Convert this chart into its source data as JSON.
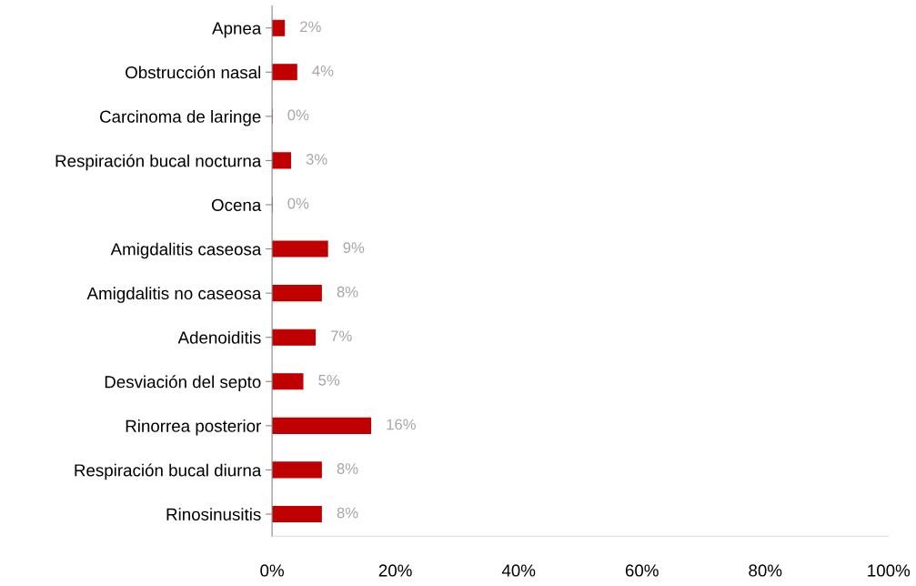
{
  "chart_data": {
    "type": "bar",
    "orientation": "horizontal",
    "categories": [
      "Apnea",
      "Obstrucción nasal",
      "Carcinoma de laringe",
      "Respiración bucal nocturna",
      "Ocena",
      "Amigdalitis caseosa",
      "Amigdalitis no caseosa",
      "Adenoiditis",
      "Desviación del septo",
      "Rinorrea posterior",
      "Respiración bucal diurna",
      "Rinosinusitis"
    ],
    "values": [
      2,
      4,
      0,
      3,
      0,
      9,
      8,
      7,
      5,
      16,
      8,
      8
    ],
    "value_labels": [
      "2%",
      "4%",
      "0%",
      "3%",
      "0%",
      "9%",
      "8%",
      "7%",
      "5%",
      "16%",
      "8%",
      "8%"
    ],
    "color": "#c00000",
    "xlim": [
      0,
      100
    ],
    "xticks": [
      {
        "value": 0,
        "label": "0%"
      },
      {
        "value": 20,
        "label": "20%"
      },
      {
        "value": 40,
        "label": "40%"
      },
      {
        "value": 60,
        "label": "60%"
      },
      {
        "value": 80,
        "label": "80%"
      },
      {
        "value": 100,
        "label": "100%"
      }
    ],
    "grid": false,
    "legend": false
  }
}
